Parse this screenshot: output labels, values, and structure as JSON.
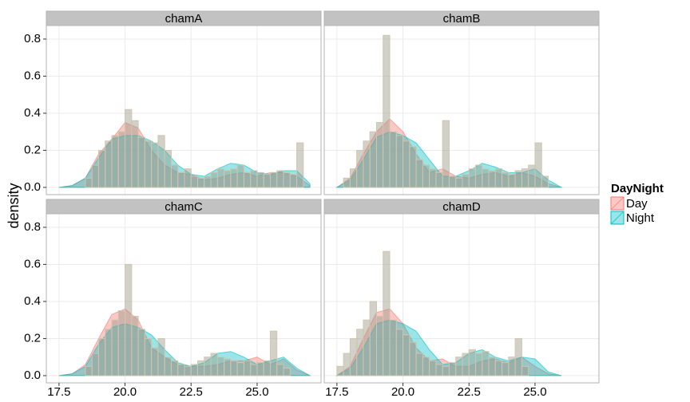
{
  "y_label": "density",
  "legend_title": "DayNight",
  "chart_data": [
    {
      "type": "histogram",
      "title": "chamA",
      "color": "#9a9a8a",
      "edge_color": "#cfc6ae",
      "bins": [
        18.5,
        18.75,
        19,
        19.25,
        19.5,
        19.75,
        20,
        20.25,
        20.5,
        20.75,
        21,
        21.25,
        21.5,
        21.75,
        22,
        22.25,
        22.5,
        22.75,
        23,
        23.25,
        23.5,
        23.75,
        24,
        24.25,
        24.5,
        24.75,
        25,
        25.25,
        25.5,
        25.75,
        26,
        26.25,
        26.5,
        26.75
      ],
      "values": [
        0.05,
        0.12,
        0.2,
        0.25,
        0.28,
        0.3,
        0.42,
        0.36,
        0.27,
        0.25,
        0.24,
        0.28,
        0.2,
        0.12,
        0.08,
        0.1,
        0.06,
        0.05,
        0.06,
        0.08,
        0.1,
        0.09,
        0.1,
        0.12,
        0.08,
        0.09,
        0.08,
        0.07,
        0.08,
        0.09,
        0.08,
        0.07,
        0.24
      ],
      "series": [
        {
          "name": "Day",
          "color": "#f8766d",
          "x": [
            17.5,
            18,
            18.5,
            19,
            19.5,
            20,
            20.5,
            21,
            21.5,
            22,
            22.5,
            23,
            23.5,
            24,
            24.5,
            25,
            25.5,
            26,
            26.5,
            27
          ],
          "values": [
            0,
            0.01,
            0.05,
            0.18,
            0.26,
            0.35,
            0.32,
            0.2,
            0.12,
            0.08,
            0.07,
            0.04,
            0.05,
            0.07,
            0.08,
            0.06,
            0.08,
            0.08,
            0.06,
            0.01
          ]
        },
        {
          "name": "Night",
          "color": "#00bfc4",
          "x": [
            17.5,
            18,
            18.5,
            19,
            19.5,
            20,
            20.5,
            21,
            21.5,
            22,
            22.5,
            23,
            23.5,
            24,
            24.5,
            25,
            25.5,
            26,
            26.5,
            27
          ],
          "values": [
            0,
            0.01,
            0.05,
            0.16,
            0.26,
            0.28,
            0.28,
            0.25,
            0.2,
            0.12,
            0.07,
            0.06,
            0.1,
            0.13,
            0.12,
            0.08,
            0.07,
            0.09,
            0.09,
            0.02
          ]
        }
      ],
      "xlim": [
        17.02,
        27.42
      ],
      "ylim": [
        -0.039,
        0.873
      ],
      "xticks": [
        17.5,
        {
          "value": 20,
          "label": "20.0"
        },
        22.5,
        {
          "value": 25,
          "label": "25.0"
        }
      ],
      "yticks": [
        {
          "value": 0,
          "label": "0.0"
        },
        0.2,
        0.4,
        0.6,
        0.8
      ],
      "grid": true
    },
    {
      "type": "histogram",
      "title": "chamB",
      "color": "#9a9a8a",
      "edge_color": "#cfc6ae",
      "bins": [
        17.75,
        18,
        18.25,
        18.5,
        18.75,
        19,
        19.25,
        19.5,
        19.75,
        20,
        20.25,
        20.5,
        20.75,
        21,
        21.25,
        21.5,
        21.75,
        22,
        22.25,
        22.5,
        22.75,
        23,
        23.25,
        23.5,
        23.75,
        24,
        24.25,
        24.5,
        24.75,
        25,
        25.25,
        25.5
      ],
      "values": [
        0.05,
        0.1,
        0.2,
        0.25,
        0.3,
        0.35,
        0.82,
        0.3,
        0.28,
        0.25,
        0.22,
        0.15,
        0.12,
        0.1,
        0.08,
        0.36,
        0.06,
        0.05,
        0.07,
        0.1,
        0.12,
        0.1,
        0.09,
        0.1,
        0.08,
        0.07,
        0.09,
        0.1,
        0.12,
        0.24,
        0.06
      ],
      "series": [
        {
          "name": "Day",
          "color": "#f8766d",
          "x": [
            17.5,
            18,
            18.5,
            19,
            19.5,
            20,
            20.5,
            21,
            21.5,
            22,
            22.5,
            23,
            23.5,
            24,
            24.5,
            25,
            25.5,
            26
          ],
          "values": [
            0,
            0.05,
            0.18,
            0.3,
            0.37,
            0.3,
            0.18,
            0.08,
            0.1,
            0.06,
            0.05,
            0.07,
            0.08,
            0.06,
            0.08,
            0.06,
            0.02,
            0
          ]
        },
        {
          "name": "Night",
          "color": "#00bfc4",
          "x": [
            17.5,
            18,
            18.5,
            19,
            19.5,
            20,
            20.5,
            21,
            21.5,
            22,
            22.5,
            23,
            23.5,
            24,
            24.5,
            25,
            25.5,
            26
          ],
          "values": [
            0,
            0.04,
            0.15,
            0.27,
            0.3,
            0.28,
            0.24,
            0.15,
            0.06,
            0.06,
            0.09,
            0.13,
            0.11,
            0.08,
            0.08,
            0.1,
            0.04,
            0
          ]
        }
      ],
      "xlim": [
        17.02,
        27.42
      ],
      "ylim": [
        -0.039,
        0.873
      ],
      "xticks": [
        17.5,
        {
          "value": 20,
          "label": "20.0"
        },
        22.5,
        {
          "value": 25,
          "label": "25.0"
        }
      ],
      "yticks": [
        {
          "value": 0,
          "label": "0.0"
        },
        0.2,
        0.4,
        0.6,
        0.8
      ],
      "grid": true
    },
    {
      "type": "histogram",
      "title": "chamC",
      "color": "#9a9a8a",
      "edge_color": "#cfc6ae",
      "bins": [
        18.5,
        18.75,
        19,
        19.25,
        19.5,
        19.75,
        20,
        20.25,
        20.5,
        20.75,
        21,
        21.25,
        21.5,
        21.75,
        22,
        22.25,
        22.5,
        22.75,
        23,
        23.25,
        23.5,
        23.75,
        24,
        24.25,
        24.5,
        24.75,
        25,
        25.25,
        25.5,
        25.75,
        26,
        26.25
      ],
      "values": [
        0.05,
        0.12,
        0.2,
        0.25,
        0.3,
        0.35,
        0.6,
        0.32,
        0.25,
        0.2,
        0.15,
        0.2,
        0.1,
        0.08,
        0.06,
        0.05,
        0.06,
        0.08,
        0.1,
        0.12,
        0.1,
        0.09,
        0.08,
        0.07,
        0.08,
        0.06,
        0.07,
        0.08,
        0.24,
        0.06,
        0.04
      ],
      "series": [
        {
          "name": "Day",
          "color": "#f8766d",
          "x": [
            17.5,
            18,
            18.5,
            19,
            19.5,
            20,
            20.5,
            21,
            21.5,
            22,
            22.5,
            23,
            23.5,
            24,
            24.5,
            25,
            25.5,
            26,
            26.5,
            27
          ],
          "values": [
            0,
            0.01,
            0.06,
            0.2,
            0.33,
            0.36,
            0.3,
            0.15,
            0.1,
            0.06,
            0.05,
            0.05,
            0.06,
            0.08,
            0.08,
            0.1,
            0.06,
            0.09,
            0.03,
            0
          ]
        },
        {
          "name": "Night",
          "color": "#00bfc4",
          "x": [
            17.5,
            18,
            18.5,
            19,
            19.5,
            20,
            20.5,
            21,
            21.5,
            22,
            22.5,
            23,
            23.5,
            24,
            24.5,
            25,
            25.5,
            26,
            26.5,
            27
          ],
          "values": [
            0,
            0.01,
            0.05,
            0.17,
            0.26,
            0.28,
            0.26,
            0.22,
            0.14,
            0.07,
            0.05,
            0.07,
            0.12,
            0.13,
            0.1,
            0.06,
            0.08,
            0.1,
            0.04,
            0
          ]
        }
      ],
      "xlim": [
        17.02,
        27.42
      ],
      "ylim": [
        -0.039,
        0.873
      ],
      "xticks": [
        17.5,
        {
          "value": 20,
          "label": "20.0"
        },
        22.5,
        {
          "value": 25,
          "label": "25.0"
        }
      ],
      "yticks": [
        {
          "value": 0,
          "label": "0.0"
        },
        0.2,
        0.4,
        0.6,
        0.8
      ],
      "grid": true
    },
    {
      "type": "histogram",
      "title": "chamD",
      "color": "#9a9a8a",
      "edge_color": "#cfc6ae",
      "bins": [
        17.5,
        17.75,
        18,
        18.25,
        18.5,
        18.75,
        19,
        19.25,
        19.5,
        19.75,
        20,
        20.25,
        20.5,
        20.75,
        21,
        21.25,
        21.5,
        21.75,
        22,
        22.25,
        22.5,
        22.75,
        23,
        23.25,
        23.5,
        23.75,
        24,
        24.25,
        24.5,
        24.75
      ],
      "values": [
        0.05,
        0.12,
        0.2,
        0.25,
        0.3,
        0.4,
        0.32,
        0.67,
        0.3,
        0.25,
        0.22,
        0.18,
        0.12,
        0.1,
        0.08,
        0.06,
        0.05,
        0.07,
        0.1,
        0.12,
        0.14,
        0.12,
        0.13,
        0.1,
        0.08,
        0.07,
        0.1,
        0.2,
        0.05
      ],
      "series": [
        {
          "name": "Day",
          "color": "#f8766d",
          "x": [
            17.5,
            18,
            18.5,
            19,
            19.5,
            20,
            20.5,
            21,
            21.5,
            22,
            22.5,
            23,
            23.5,
            24,
            24.5,
            25,
            25.5,
            26
          ],
          "values": [
            0,
            0.05,
            0.2,
            0.34,
            0.36,
            0.28,
            0.15,
            0.08,
            0.09,
            0.05,
            0.05,
            0.08,
            0.09,
            0.07,
            0.1,
            0.05,
            0.01,
            0
          ]
        },
        {
          "name": "Night",
          "color": "#00bfc4",
          "x": [
            17.5,
            18,
            18.5,
            19,
            19.5,
            20,
            20.5,
            21,
            21.5,
            22,
            22.5,
            23,
            23.5,
            24,
            24.5,
            25,
            25.5,
            26
          ],
          "values": [
            0,
            0.04,
            0.15,
            0.28,
            0.3,
            0.28,
            0.24,
            0.14,
            0.06,
            0.07,
            0.12,
            0.14,
            0.1,
            0.08,
            0.1,
            0.09,
            0.02,
            0
          ]
        }
      ],
      "xlim": [
        17.02,
        27.42
      ],
      "ylim": [
        -0.039,
        0.873
      ],
      "xticks": [
        17.5,
        {
          "value": 20,
          "label": "20.0"
        },
        22.5,
        {
          "value": 25,
          "label": "25.0"
        }
      ],
      "yticks": [
        {
          "value": 0,
          "label": "0.0"
        },
        0.2,
        0.4,
        0.6,
        0.8
      ],
      "grid": true
    }
  ]
}
